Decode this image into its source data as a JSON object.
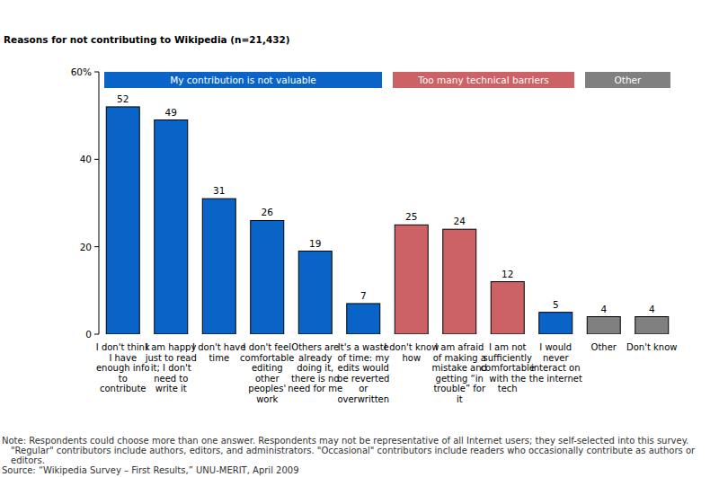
{
  "chart_data": {
    "type": "bar",
    "title": "Reasons for not contributing to Wikipedia (n=21,432)",
    "categories": [
      "I don't think I have enough info to contribute",
      "I am happy just to read it; I don't need to write it",
      "I don't have time",
      "I don't feel comfortable editing other peoples' work",
      "Others are already doing it, there is no need for me",
      "It's a waste of time: my edits would be reverted or overwritten",
      "I don't know how",
      "I am afraid of making a mistake and getting “in trouble” for it",
      "I am not sufficiently comfortable with the tech",
      "I would never interact on the internet",
      "Other",
      "Don't know"
    ],
    "values": [
      52,
      49,
      31,
      26,
      19,
      7,
      25,
      24,
      12,
      5,
      4,
      4
    ],
    "colors": [
      "#0a64c8",
      "#0a64c8",
      "#0a64c8",
      "#0a64c8",
      "#0a64c8",
      "#0a64c8",
      "#cd6266",
      "#cd6266",
      "#cd6266",
      "#0a64c8",
      "#808080",
      "#808080"
    ],
    "ylim": [
      0,
      60
    ],
    "yticks": [
      0,
      20,
      40,
      {
        "value": 60,
        "label": "60%"
      }
    ],
    "grid": false,
    "data_labels": true,
    "groups": [
      {
        "label": "My contribution is not valuable",
        "color": "#0a64c8",
        "first": 0,
        "last": 5
      },
      {
        "label": "Too many technical barriers",
        "color": "#cd6266",
        "first": 6,
        "last": 9
      },
      {
        "label": "Other",
        "color": "#808080",
        "first": 10,
        "last": 11
      }
    ],
    "note": "Note: Respondents could choose more than one answer. Respondents may not be representative of all Internet users; they self-selected into this survey. \"Regular\" contributors include authors, editors, and administrators. \"Occasional\" contributors include readers who occasionally contribute as authors or editors.",
    "source": "Source: “Wikipedia Survey – First Results,” UNU-MERIT, April 2009"
  }
}
